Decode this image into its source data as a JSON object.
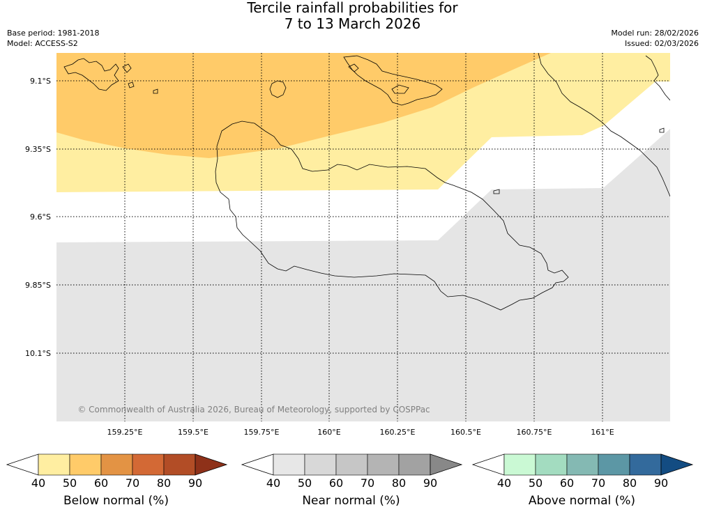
{
  "title": {
    "line1": "Tercile rainfall probabilities for",
    "line2": "7 to 13 March 2026"
  },
  "meta": {
    "base_period": "Base period: 1981-2018",
    "model": "Model: ACCESS-S2",
    "model_run": "Model run: 28/02/2026",
    "issued": "Issued: 02/03/2026"
  },
  "map": {
    "lat_labels": [
      "9.1°S",
      "9.35°S",
      "9.6°S",
      "9.85°S",
      "10.1°S"
    ],
    "lon_labels": [
      "159.25°E",
      "159.5°E",
      "159.75°E",
      "160°E",
      "160.25°E",
      "160.5°E",
      "160.75°E",
      "161°E"
    ],
    "copyright": "© Commonwealth of Australia 2026, Bureau of Meteorology, supported by COSPPac",
    "gridlines": "dotted",
    "categories_shown": [
      {
        "category": "below normal",
        "probability_bin": "50-60",
        "region": "north"
      },
      {
        "category": "below normal",
        "probability_bin": "40-50",
        "region": "north-central"
      },
      {
        "category": "none / equal chances",
        "probability_bin": "<40",
        "region": "central band"
      },
      {
        "category": "near normal",
        "probability_bin": "40-50",
        "region": "south"
      }
    ]
  },
  "colorbars": [
    {
      "label": "Below normal (%)",
      "ticks": [
        "40",
        "50",
        "60",
        "70",
        "80",
        "90"
      ],
      "colors": [
        "#ffffff",
        "#ffeea1",
        "#ffcb69",
        "#e39344",
        "#d36935",
        "#b24d26",
        "#8e3119"
      ]
    },
    {
      "label": "Near normal (%)",
      "ticks": [
        "40",
        "50",
        "60",
        "70",
        "80",
        "90"
      ],
      "colors": [
        "#ffffff",
        "#e7e7e7",
        "#d8d8d8",
        "#c6c6c6",
        "#b4b4b4",
        "#a2a2a2",
        "#888888"
      ]
    },
    {
      "label": "Above normal (%)",
      "ticks": [
        "40",
        "50",
        "60",
        "70",
        "80",
        "90"
      ],
      "colors": [
        "#ffffff",
        "#caf9d4",
        "#a3dcc0",
        "#84b9b3",
        "#5c97a5",
        "#336a9c",
        "#134c82"
      ]
    }
  ]
}
